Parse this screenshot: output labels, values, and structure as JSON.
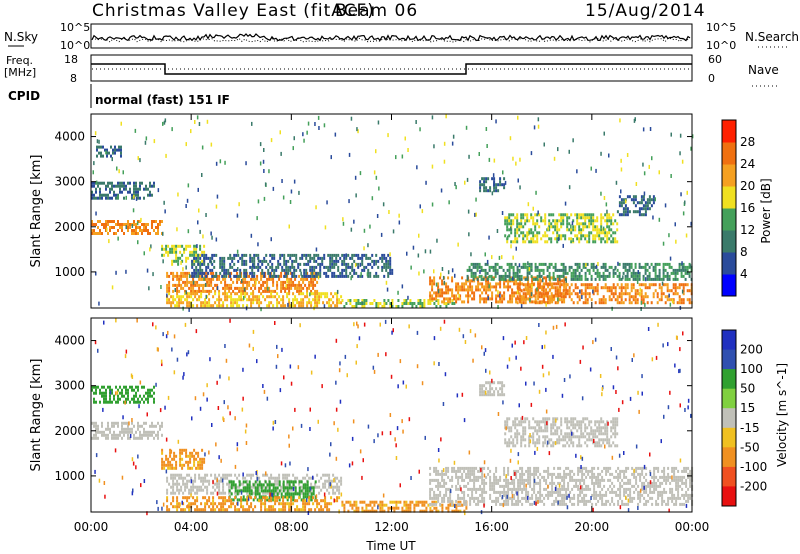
{
  "header": {
    "title": "Christmas Valley East (fitACF)",
    "beam": "Beam 06",
    "date": "15/Aug/2014"
  },
  "noise_panel": {
    "left_label": "N.Sky",
    "right_label": "N.Search",
    "left_ticks": [
      "10^5",
      "10^0"
    ],
    "right_ticks": [
      "10^5",
      "10^0"
    ]
  },
  "freq_panel": {
    "left_label_line1": "Freq.",
    "left_label_line2": "[MHz]",
    "right_label": "Nave",
    "left_ticks": [
      "18",
      "8"
    ],
    "right_ticks": [
      "60",
      "0"
    ]
  },
  "cpid": {
    "label": "CPID",
    "text": "normal (fast) 151 IF"
  },
  "x_axis": {
    "label": "Time UT",
    "ticks": [
      "00:00",
      "04:00",
      "08:00",
      "12:00",
      "16:00",
      "20:00",
      "00:00"
    ]
  },
  "colors": {
    "power_scale": [
      "#0000ff",
      "#2a4b9b",
      "#3a7a6a",
      "#44a05a",
      "#f0e020",
      "#f5a020",
      "#f07010",
      "#ff2000"
    ],
    "velocity_scale": [
      "#2030c0",
      "#3050b0",
      "#30a030",
      "#80d040",
      "#c0c0b8",
      "#f0c020",
      "#f09020",
      "#f05020",
      "#e81010"
    ]
  },
  "chart_data": [
    {
      "type": "heatmap",
      "panel": "power",
      "ylabel": "Slant Range [km]",
      "yticks": [
        1000,
        2000,
        3000,
        4000
      ],
      "ylim": [
        200,
        4500
      ],
      "xlim_hours": [
        0,
        24
      ],
      "colorbar": {
        "label": "Power [dB]",
        "ticks": [
          "4",
          "8",
          "12",
          "16",
          "20",
          "24",
          "28"
        ]
      },
      "regions": [
        {
          "t0": 0.0,
          "t1": 2.8,
          "r0": 1850,
          "r1": 2150,
          "level": 26
        },
        {
          "t0": 0.0,
          "t1": 2.5,
          "r0": 2650,
          "r1": 3000,
          "level": 12
        },
        {
          "t0": 0.2,
          "t1": 1.2,
          "r0": 3550,
          "r1": 3800,
          "level": 10
        },
        {
          "t0": 2.8,
          "t1": 4.5,
          "r0": 1150,
          "r1": 1600,
          "level": 18
        },
        {
          "t0": 3.0,
          "t1": 9.0,
          "r0": 600,
          "r1": 1000,
          "level": 27
        },
        {
          "t0": 4.0,
          "t1": 12.0,
          "r0": 900,
          "r1": 1400,
          "level": 10
        },
        {
          "t0": 3.0,
          "t1": 10.0,
          "r0": 250,
          "r1": 550,
          "level": 22
        },
        {
          "t0": 10.0,
          "t1": 14.5,
          "r0": 250,
          "r1": 400,
          "level": 18
        },
        {
          "t0": 13.5,
          "t1": 19.0,
          "r0": 350,
          "r1": 900,
          "level": 29
        },
        {
          "t0": 17.0,
          "t1": 24.0,
          "r0": 300,
          "r1": 750,
          "level": 27
        },
        {
          "t0": 15.0,
          "t1": 24.0,
          "r0": 850,
          "r1": 1200,
          "level": 14
        },
        {
          "t0": 15.5,
          "t1": 16.5,
          "r0": 2800,
          "r1": 3100,
          "level": 12
        },
        {
          "t0": 16.5,
          "t1": 21.0,
          "r0": 1700,
          "r1": 2300,
          "level": 20
        },
        {
          "t0": 21.0,
          "t1": 22.5,
          "r0": 2300,
          "r1": 2700,
          "level": 10
        }
      ]
    },
    {
      "type": "heatmap",
      "panel": "velocity",
      "ylabel": "Slant Range [km]",
      "yticks": [
        1000,
        2000,
        3000,
        4000
      ],
      "ylim": [
        200,
        4500
      ],
      "xlim_hours": [
        0,
        24
      ],
      "colorbar": {
        "label": "Velocity [m s^-1]",
        "ticks": [
          "200",
          "100",
          "50",
          "15",
          "-15",
          "-50",
          "-100",
          "-200"
        ]
      },
      "regions": [
        {
          "t0": 0.0,
          "t1": 2.8,
          "r0": 1850,
          "r1": 2200,
          "level": 0
        },
        {
          "t0": 0.0,
          "t1": 2.5,
          "r0": 2650,
          "r1": 3000,
          "level": 60
        },
        {
          "t0": 2.8,
          "t1": 4.5,
          "r0": 1150,
          "r1": 1600,
          "level": -40
        },
        {
          "t0": 3.0,
          "t1": 10.0,
          "r0": 600,
          "r1": 1050,
          "level": 0
        },
        {
          "t0": 5.5,
          "t1": 9.0,
          "r0": 450,
          "r1": 900,
          "level": 60
        },
        {
          "t0": 3.0,
          "t1": 10.0,
          "r0": 250,
          "r1": 550,
          "level": -40
        },
        {
          "t0": 10.0,
          "t1": 15.0,
          "r0": 250,
          "r1": 450,
          "level": -40
        },
        {
          "t0": 13.5,
          "t1": 24.0,
          "r0": 350,
          "r1": 1200,
          "level": 0
        },
        {
          "t0": 16.5,
          "t1": 21.0,
          "r0": 1700,
          "r1": 2300,
          "level": 0
        },
        {
          "t0": 15.5,
          "t1": 16.5,
          "r0": 2800,
          "r1": 3100,
          "level": 0
        }
      ]
    }
  ]
}
